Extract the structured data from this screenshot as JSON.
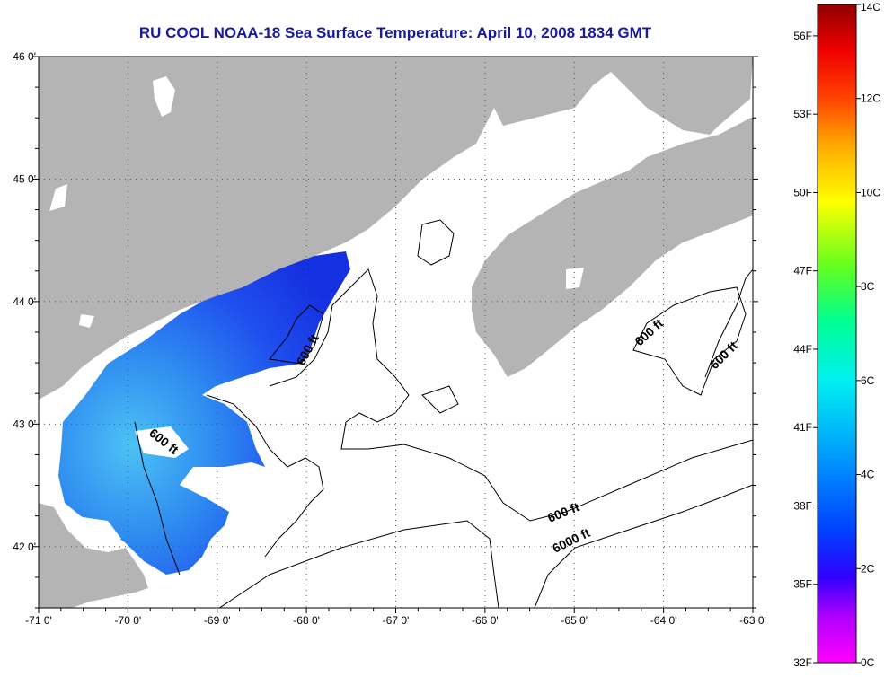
{
  "title": "RU COOL  NOAA-18  Sea Surface Temperature:  April 10, 2008 1834 GMT",
  "map": {
    "lon_range": [
      -71,
      -63
    ],
    "lat_range": [
      41.5,
      46
    ],
    "lon_ticks": [
      "-71 0'",
      "-70 0'",
      "-69 0'",
      "-68 0'",
      "-67 0'",
      "-66 0'",
      "-65 0'",
      "-64 0'",
      "-63 0'"
    ],
    "lat_ticks": [
      "46 0'",
      "45 0'",
      "44 0'",
      "43 0'",
      "42 0'"
    ],
    "contour_labels": [
      "600 ft",
      "600 ft",
      "600 ft",
      "600 ft",
      "600 ft",
      "6000 ft"
    ],
    "colors": {
      "land": "#b4b4b4",
      "water_nodata": "#ffffff",
      "sst_cold": "#1e3cf0",
      "sst_warm": "#3fb4f5"
    }
  },
  "colorbar": {
    "celsius_labels": [
      "14C",
      "12C",
      "10C",
      "8C",
      "6C",
      "4C",
      "2C",
      "0C"
    ],
    "fahrenheit_labels": [
      "56F",
      "53F",
      "50F",
      "47F",
      "44F",
      "41F",
      "38F",
      "35F",
      "32F"
    ],
    "range_c": [
      0,
      14
    ],
    "colors": [
      "#ff00ff",
      "#8000ff",
      "#0000ff",
      "#0080ff",
      "#00ffff",
      "#00ff80",
      "#80ff00",
      "#ffff00",
      "#ffa000",
      "#ff4000",
      "#ff0000",
      "#a00000"
    ]
  }
}
